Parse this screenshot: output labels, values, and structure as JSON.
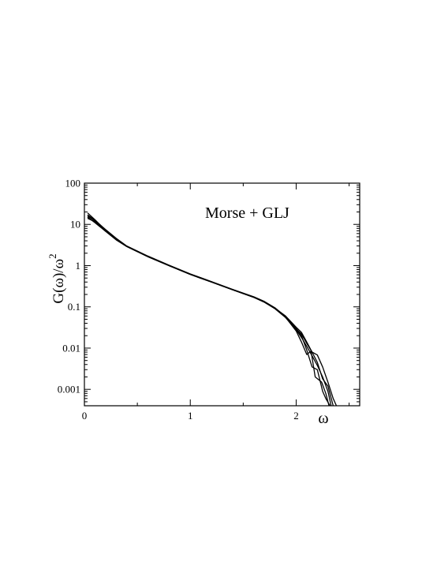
{
  "chart_data": {
    "type": "line",
    "xlabel": "ω",
    "ylabel": "G(ω)/ω",
    "ylabel_superscript": "2",
    "annotation": "Morse + GLJ",
    "xlim": [
      0,
      2.6
    ],
    "ylim": [
      0.0004,
      100
    ],
    "yscale": "log",
    "x_ticks": [
      {
        "value": 0,
        "label": "0"
      },
      {
        "value": 1,
        "label": "1"
      },
      {
        "value": 2,
        "label": "2"
      }
    ],
    "y_ticks": [
      {
        "value": 0.001,
        "label": "0.001"
      },
      {
        "value": 0.01,
        "label": "0.01"
      },
      {
        "value": 0.1,
        "label": "0.1"
      },
      {
        "value": 1,
        "label": "1"
      },
      {
        "value": 10,
        "label": "10"
      },
      {
        "value": 100,
        "label": "100"
      }
    ],
    "grid": false,
    "line_color": "#000000",
    "series": [
      {
        "x": [
          0.03,
          0.1,
          0.2,
          0.3,
          0.4,
          0.6,
          0.8,
          1.0,
          1.2,
          1.4,
          1.6,
          1.7,
          1.8,
          1.9,
          2.0,
          2.05,
          2.1,
          2.15,
          2.2,
          2.25,
          2.3,
          2.33
        ],
        "y": [
          15,
          11,
          6.8,
          4.2,
          2.9,
          1.65,
          1.0,
          0.62,
          0.4,
          0.26,
          0.17,
          0.13,
          0.09,
          0.055,
          0.028,
          0.018,
          0.011,
          0.0065,
          0.0038,
          0.002,
          0.0009,
          0.0004
        ]
      },
      {
        "x": [
          0.03,
          0.1,
          0.2,
          0.3,
          0.4,
          0.6,
          0.8,
          1.0,
          1.2,
          1.4,
          1.6,
          1.7,
          1.8,
          1.9,
          2.0,
          2.05,
          2.1,
          2.15,
          2.2,
          2.25,
          2.28,
          2.32
        ],
        "y": [
          17,
          12.5,
          7.5,
          4.6,
          3.0,
          1.7,
          1.02,
          0.63,
          0.41,
          0.265,
          0.175,
          0.135,
          0.095,
          0.058,
          0.03,
          0.02,
          0.009,
          0.0035,
          0.003,
          0.0009,
          0.0006,
          0.0004
        ]
      },
      {
        "x": [
          0.03,
          0.1,
          0.2,
          0.3,
          0.4,
          0.6,
          0.8,
          1.0,
          1.2,
          1.4,
          1.6,
          1.7,
          1.8,
          1.9,
          2.0,
          2.05,
          2.1,
          2.15,
          2.2,
          2.25,
          2.3,
          2.35,
          2.38
        ],
        "y": [
          19,
          13,
          7.2,
          4.4,
          2.95,
          1.68,
          1.01,
          0.62,
          0.405,
          0.262,
          0.172,
          0.133,
          0.093,
          0.06,
          0.032,
          0.024,
          0.014,
          0.008,
          0.0068,
          0.0035,
          0.0015,
          0.0006,
          0.0004
        ]
      },
      {
        "x": [
          0.03,
          0.1,
          0.2,
          0.3,
          0.4,
          0.6,
          0.8,
          1.0,
          1.2,
          1.4,
          1.6,
          1.7,
          1.8,
          1.9,
          2.0,
          2.05,
          2.1,
          2.14,
          2.18,
          2.24,
          2.28,
          2.31
        ],
        "y": [
          16,
          12,
          7.0,
          4.3,
          2.92,
          1.66,
          1.0,
          0.61,
          0.4,
          0.26,
          0.17,
          0.13,
          0.092,
          0.056,
          0.026,
          0.014,
          0.007,
          0.0085,
          0.002,
          0.0015,
          0.0008,
          0.0004
        ]
      },
      {
        "x": [
          0.03,
          0.1,
          0.2,
          0.3,
          0.4,
          0.6,
          0.8,
          1.0,
          1.2,
          1.4,
          1.6,
          1.7,
          1.8,
          1.9,
          2.0,
          2.05,
          2.1,
          2.15,
          2.2,
          2.25,
          2.3,
          2.35
        ],
        "y": [
          14,
          11.5,
          6.9,
          4.3,
          2.9,
          1.64,
          0.99,
          0.61,
          0.4,
          0.258,
          0.17,
          0.13,
          0.091,
          0.057,
          0.029,
          0.022,
          0.013,
          0.008,
          0.0045,
          0.0018,
          0.0012,
          0.0004
        ]
      }
    ]
  }
}
